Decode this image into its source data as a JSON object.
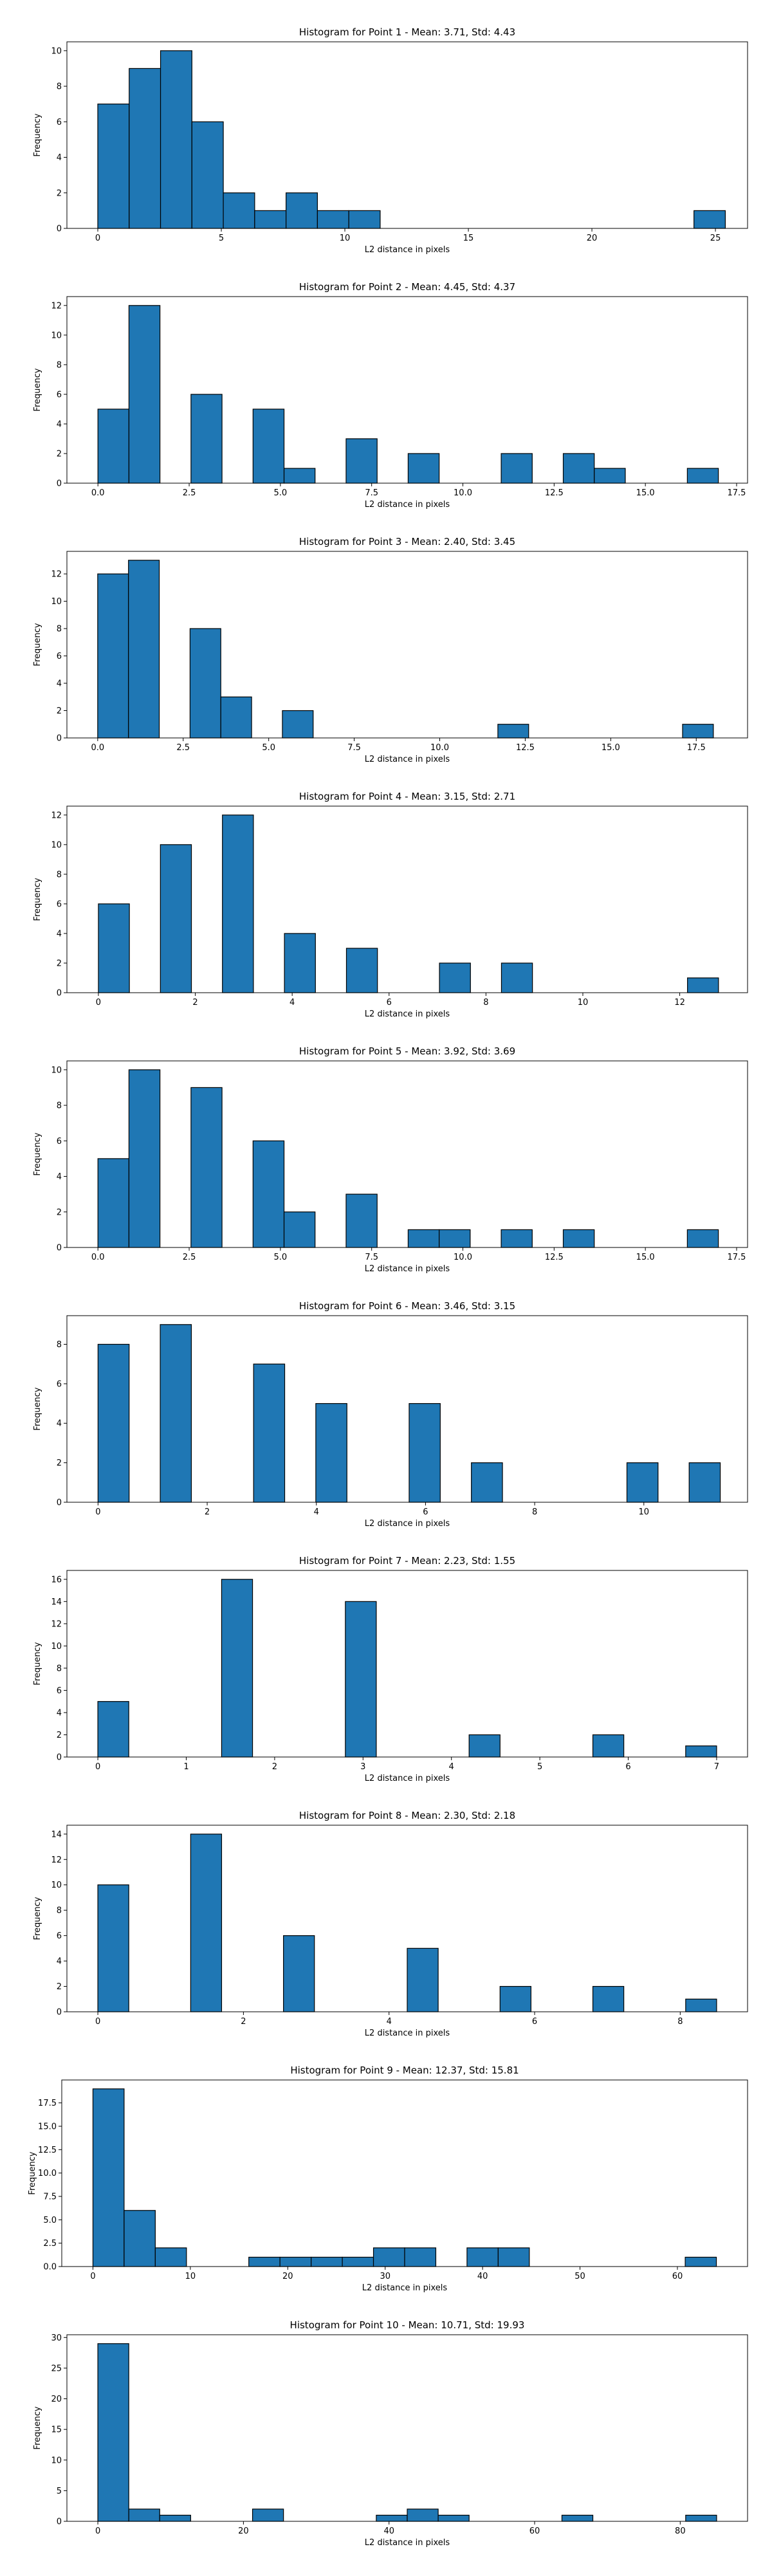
{
  "chart_data": [
    {
      "type": "bar",
      "title": "Histogram for Point 1 - Mean: 3.71, Std: 4.43",
      "xlabel": "L2 distance in pixels",
      "ylabel": "Frequency",
      "xlim": [
        -1.25,
        26.3
      ],
      "ylim": [
        0,
        10.5
      ],
      "xticks": [
        0,
        5,
        10,
        15,
        20,
        25
      ],
      "xtick_labels": [
        "0",
        "5",
        "10",
        "15",
        "20",
        "25"
      ],
      "yticks": [
        0,
        2,
        4,
        6,
        8,
        10
      ],
      "ytick_labels": [
        "0",
        "2",
        "4",
        "6",
        "8",
        "10"
      ],
      "bins": [
        {
          "x0": 0.0,
          "x1": 1.27,
          "count": 7
        },
        {
          "x0": 1.27,
          "x1": 2.54,
          "count": 9
        },
        {
          "x0": 2.54,
          "x1": 3.81,
          "count": 10
        },
        {
          "x0": 3.81,
          "x1": 5.08,
          "count": 6
        },
        {
          "x0": 5.08,
          "x1": 6.35,
          "count": 2
        },
        {
          "x0": 6.35,
          "x1": 7.62,
          "count": 1
        },
        {
          "x0": 7.62,
          "x1": 8.89,
          "count": 2
        },
        {
          "x0": 8.89,
          "x1": 10.16,
          "count": 1
        },
        {
          "x0": 10.16,
          "x1": 11.43,
          "count": 1
        },
        {
          "x0": 24.13,
          "x1": 25.4,
          "count": 1
        }
      ]
    },
    {
      "type": "bar",
      "title": "Histogram for Point 2 - Mean: 4.45, Std: 4.37",
      "xlabel": "L2 distance in pixels",
      "ylabel": "Frequency",
      "xlim": [
        -0.85,
        17.8
      ],
      "ylim": [
        0,
        12.6
      ],
      "xticks": [
        0,
        2.5,
        5,
        7.5,
        10,
        12.5,
        15,
        17.5
      ],
      "xtick_labels": [
        "0.0",
        "2.5",
        "5.0",
        "7.5",
        "10.0",
        "12.5",
        "15.0",
        "17.5"
      ],
      "yticks": [
        0,
        2,
        4,
        6,
        8,
        10,
        12
      ],
      "ytick_labels": [
        "0",
        "2",
        "4",
        "6",
        "8",
        "10",
        "12"
      ],
      "bins": [
        {
          "x0": 0.0,
          "x1": 0.85,
          "count": 5
        },
        {
          "x0": 0.85,
          "x1": 1.7,
          "count": 12
        },
        {
          "x0": 2.55,
          "x1": 3.4,
          "count": 6
        },
        {
          "x0": 4.25,
          "x1": 5.1,
          "count": 5
        },
        {
          "x0": 5.1,
          "x1": 5.95,
          "count": 1
        },
        {
          "x0": 6.8,
          "x1": 7.65,
          "count": 3
        },
        {
          "x0": 8.5,
          "x1": 9.35,
          "count": 2
        },
        {
          "x0": 11.05,
          "x1": 11.9,
          "count": 2
        },
        {
          "x0": 12.75,
          "x1": 13.6,
          "count": 2
        },
        {
          "x0": 13.6,
          "x1": 14.45,
          "count": 1
        },
        {
          "x0": 16.15,
          "x1": 17.0,
          "count": 1
        }
      ]
    },
    {
      "type": "bar",
      "title": "Histogram for Point 3 - Mean: 2.40, Std: 3.45",
      "xlabel": "L2 distance in pixels",
      "ylabel": "Frequency",
      "xlim": [
        -0.9,
        19.0
      ],
      "ylim": [
        0,
        13.65
      ],
      "xticks": [
        0,
        2.5,
        5,
        7.5,
        10,
        12.5,
        15,
        17.5
      ],
      "xtick_labels": [
        "0.0",
        "2.5",
        "5.0",
        "7.5",
        "10.0",
        "12.5",
        "15.0",
        "17.5"
      ],
      "yticks": [
        0,
        2,
        4,
        6,
        8,
        10,
        12
      ],
      "ytick_labels": [
        "0",
        "2",
        "4",
        "6",
        "8",
        "10",
        "12"
      ],
      "bins": [
        {
          "x0": 0.0,
          "x1": 0.9,
          "count": 12
        },
        {
          "x0": 0.9,
          "x1": 1.8,
          "count": 13
        },
        {
          "x0": 2.7,
          "x1": 3.6,
          "count": 8
        },
        {
          "x0": 3.6,
          "x1": 4.5,
          "count": 3
        },
        {
          "x0": 5.4,
          "x1": 6.3,
          "count": 2
        },
        {
          "x0": 11.7,
          "x1": 12.6,
          "count": 1
        },
        {
          "x0": 17.1,
          "x1": 18.0,
          "count": 1
        }
      ]
    },
    {
      "type": "bar",
      "title": "Histogram for Point 4 - Mean: 3.15, Std: 2.71",
      "xlabel": "L2 distance in pixels",
      "ylabel": "Frequency",
      "xlim": [
        -0.65,
        13.4
      ],
      "ylim": [
        0,
        12.6
      ],
      "xticks": [
        0,
        2,
        4,
        6,
        8,
        10,
        12
      ],
      "xtick_labels": [
        "0",
        "2",
        "4",
        "6",
        "8",
        "10",
        "12"
      ],
      "yticks": [
        0,
        2,
        4,
        6,
        8,
        10,
        12
      ],
      "ytick_labels": [
        "0",
        "2",
        "4",
        "6",
        "8",
        "10",
        "12"
      ],
      "bins": [
        {
          "x0": 0.0,
          "x1": 0.64,
          "count": 6
        },
        {
          "x0": 1.28,
          "x1": 1.92,
          "count": 10
        },
        {
          "x0": 2.56,
          "x1": 3.2,
          "count": 12
        },
        {
          "x0": 3.84,
          "x1": 4.48,
          "count": 4
        },
        {
          "x0": 5.12,
          "x1": 5.76,
          "count": 3
        },
        {
          "x0": 7.04,
          "x1": 7.68,
          "count": 2
        },
        {
          "x0": 8.32,
          "x1": 8.96,
          "count": 2
        },
        {
          "x0": 12.16,
          "x1": 12.8,
          "count": 1
        }
      ]
    },
    {
      "type": "bar",
      "title": "Histogram for Point 5 - Mean: 3.92, Std: 3.69",
      "xlabel": "L2 distance in pixels",
      "ylabel": "Frequency",
      "xlim": [
        -0.85,
        17.8
      ],
      "ylim": [
        0,
        10.5
      ],
      "xticks": [
        0,
        2.5,
        5,
        7.5,
        10,
        12.5,
        15,
        17.5
      ],
      "xtick_labels": [
        "0.0",
        "2.5",
        "5.0",
        "7.5",
        "10.0",
        "12.5",
        "15.0",
        "17.5"
      ],
      "yticks": [
        0,
        2,
        4,
        6,
        8,
        10
      ],
      "ytick_labels": [
        "0",
        "2",
        "4",
        "6",
        "8",
        "10"
      ],
      "bins": [
        {
          "x0": 0.0,
          "x1": 0.85,
          "count": 5
        },
        {
          "x0": 0.85,
          "x1": 1.7,
          "count": 10
        },
        {
          "x0": 2.55,
          "x1": 3.4,
          "count": 9
        },
        {
          "x0": 4.25,
          "x1": 5.1,
          "count": 6
        },
        {
          "x0": 5.1,
          "x1": 5.95,
          "count": 2
        },
        {
          "x0": 6.8,
          "x1": 7.65,
          "count": 3
        },
        {
          "x0": 8.5,
          "x1": 9.35,
          "count": 1
        },
        {
          "x0": 9.35,
          "x1": 10.2,
          "count": 1
        },
        {
          "x0": 11.05,
          "x1": 11.9,
          "count": 1
        },
        {
          "x0": 12.75,
          "x1": 13.6,
          "count": 1
        },
        {
          "x0": 16.15,
          "x1": 17.0,
          "count": 1
        }
      ]
    },
    {
      "type": "bar",
      "title": "Histogram for Point 6 - Mean: 3.46, Std: 3.15",
      "xlabel": "L2 distance in pixels",
      "ylabel": "Frequency",
      "xlim": [
        -0.57,
        11.9
      ],
      "ylim": [
        0,
        9.45
      ],
      "xticks": [
        0,
        2,
        4,
        6,
        8,
        10
      ],
      "xtick_labels": [
        "0",
        "2",
        "4",
        "6",
        "8",
        "10"
      ],
      "yticks": [
        0,
        2,
        4,
        6,
        8
      ],
      "ytick_labels": [
        "0",
        "2",
        "4",
        "6",
        "8"
      ],
      "bins": [
        {
          "x0": 0.0,
          "x1": 0.57,
          "count": 8
        },
        {
          "x0": 1.14,
          "x1": 1.71,
          "count": 9
        },
        {
          "x0": 2.85,
          "x1": 3.42,
          "count": 7
        },
        {
          "x0": 3.99,
          "x1": 4.56,
          "count": 5
        },
        {
          "x0": 5.7,
          "x1": 6.27,
          "count": 5
        },
        {
          "x0": 6.84,
          "x1": 7.41,
          "count": 2
        },
        {
          "x0": 9.69,
          "x1": 10.26,
          "count": 2
        },
        {
          "x0": 10.83,
          "x1": 11.4,
          "count": 2
        }
      ]
    },
    {
      "type": "bar",
      "title": "Histogram for Point 7 - Mean: 2.23, Std: 1.55",
      "xlabel": "L2 distance in pixels",
      "ylabel": "Frequency",
      "xlim": [
        -0.35,
        7.35
      ],
      "ylim": [
        0,
        16.8
      ],
      "xticks": [
        0,
        1,
        2,
        3,
        4,
        5,
        6,
        7
      ],
      "xtick_labels": [
        "0",
        "1",
        "2",
        "3",
        "4",
        "5",
        "6",
        "7"
      ],
      "yticks": [
        0,
        2,
        4,
        6,
        8,
        10,
        12,
        14,
        16
      ],
      "ytick_labels": [
        "0",
        "2",
        "4",
        "6",
        "8",
        "10",
        "12",
        "14",
        "16"
      ],
      "bins": [
        {
          "x0": 0.0,
          "x1": 0.35,
          "count": 5
        },
        {
          "x0": 1.4,
          "x1": 1.75,
          "count": 16
        },
        {
          "x0": 2.8,
          "x1": 3.15,
          "count": 14
        },
        {
          "x0": 4.2,
          "x1": 4.55,
          "count": 2
        },
        {
          "x0": 5.6,
          "x1": 5.95,
          "count": 2
        },
        {
          "x0": 6.65,
          "x1": 7.0,
          "count": 1
        }
      ]
    },
    {
      "type": "bar",
      "title": "Histogram for Point 8 - Mean: 2.30, Std: 2.18",
      "xlabel": "L2 distance in pixels",
      "ylabel": "Frequency",
      "xlim": [
        -0.425,
        8.925
      ],
      "ylim": [
        0,
        14.7
      ],
      "xticks": [
        0,
        2,
        4,
        6,
        8
      ],
      "xtick_labels": [
        "0",
        "2",
        "4",
        "6",
        "8"
      ],
      "yticks": [
        0,
        2,
        4,
        6,
        8,
        10,
        12,
        14
      ],
      "ytick_labels": [
        "0",
        "2",
        "4",
        "6",
        "8",
        "10",
        "12",
        "14"
      ],
      "bins": [
        {
          "x0": 0.0,
          "x1": 0.425,
          "count": 10
        },
        {
          "x0": 1.275,
          "x1": 1.7,
          "count": 14
        },
        {
          "x0": 2.55,
          "x1": 2.975,
          "count": 6
        },
        {
          "x0": 4.25,
          "x1": 4.675,
          "count": 5
        },
        {
          "x0": 5.525,
          "x1": 5.95,
          "count": 2
        },
        {
          "x0": 6.8,
          "x1": 7.225,
          "count": 2
        },
        {
          "x0": 8.075,
          "x1": 8.5,
          "count": 1
        }
      ]
    },
    {
      "type": "bar",
      "title": "Histogram for Point 9 - Mean: 12.37, Std: 15.81",
      "xlabel": "L2 distance in pixels",
      "ylabel": "Frequency",
      "xlim": [
        -3.2,
        67.2
      ],
      "ylim": [
        0,
        19.95
      ],
      "xticks": [
        0,
        10,
        20,
        30,
        40,
        50,
        60
      ],
      "xtick_labels": [
        "0",
        "10",
        "20",
        "30",
        "40",
        "50",
        "60"
      ],
      "yticks": [
        0,
        2.5,
        5,
        7.5,
        10,
        12.5,
        15,
        17.5
      ],
      "ytick_labels": [
        "0.0",
        "2.5",
        "5.0",
        "7.5",
        "10.0",
        "12.5",
        "15.0",
        "17.5"
      ],
      "bins": [
        {
          "x0": 0.0,
          "x1": 3.2,
          "count": 19
        },
        {
          "x0": 3.2,
          "x1": 6.4,
          "count": 6
        },
        {
          "x0": 6.4,
          "x1": 9.6,
          "count": 2
        },
        {
          "x0": 16.0,
          "x1": 19.2,
          "count": 1
        },
        {
          "x0": 19.2,
          "x1": 22.4,
          "count": 1
        },
        {
          "x0": 22.4,
          "x1": 25.6,
          "count": 1
        },
        {
          "x0": 25.6,
          "x1": 28.8,
          "count": 1
        },
        {
          "x0": 28.8,
          "x1": 32.0,
          "count": 2
        },
        {
          "x0": 32.0,
          "x1": 35.2,
          "count": 2
        },
        {
          "x0": 38.4,
          "x1": 41.6,
          "count": 2
        },
        {
          "x0": 41.6,
          "x1": 44.8,
          "count": 2
        },
        {
          "x0": 60.8,
          "x1": 64.0,
          "count": 1
        }
      ]
    },
    {
      "type": "bar",
      "title": "Histogram for Point 10 - Mean: 10.71, Std: 19.93",
      "xlabel": "L2 distance in pixels",
      "ylabel": "Frequency",
      "xlim": [
        -4.25,
        89.25
      ],
      "ylim": [
        0,
        30.45
      ],
      "xticks": [
        0,
        20,
        40,
        60,
        80
      ],
      "xtick_labels": [
        "0",
        "20",
        "40",
        "60",
        "80"
      ],
      "yticks": [
        0,
        5,
        10,
        15,
        20,
        25,
        30
      ],
      "ytick_labels": [
        "0",
        "5",
        "10",
        "15",
        "20",
        "25",
        "30"
      ],
      "bins": [
        {
          "x0": 0.0,
          "x1": 4.25,
          "count": 29
        },
        {
          "x0": 4.25,
          "x1": 8.5,
          "count": 2
        },
        {
          "x0": 8.5,
          "x1": 12.75,
          "count": 1
        },
        {
          "x0": 21.25,
          "x1": 25.5,
          "count": 2
        },
        {
          "x0": 38.25,
          "x1": 42.5,
          "count": 1
        },
        {
          "x0": 42.5,
          "x1": 46.75,
          "count": 2
        },
        {
          "x0": 46.75,
          "x1": 51.0,
          "count": 1
        },
        {
          "x0": 63.75,
          "x1": 68.0,
          "count": 1
        },
        {
          "x0": 80.75,
          "x1": 85.0,
          "count": 1
        }
      ]
    }
  ]
}
